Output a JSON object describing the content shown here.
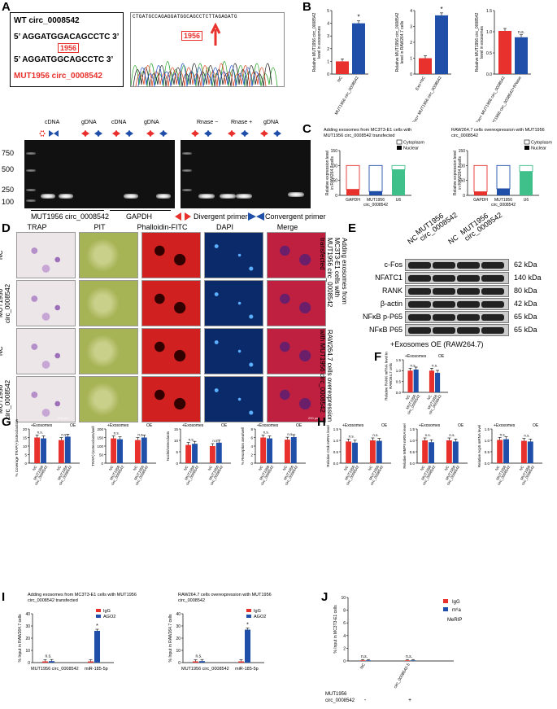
{
  "panels": {
    "A": "A",
    "B": "B",
    "C": "C",
    "D": "D",
    "E": "E",
    "F": "F",
    "G": "G",
    "H": "H",
    "I": "I",
    "J": "J"
  },
  "panelA": {
    "wt_title": "WT circ_0008542",
    "seq_wt": "5’ AGGATGGACAGCCTC 3’",
    "pos": "1956",
    "seq_mut": "5’ AGGATGGCAGCCTC 3’",
    "mut_title": "MUT1956 circ_0008542",
    "chrom_seq": "CTGATGCCAGAGGATGGCAGCCTCTTAGAGATG",
    "chrom_pos": "1956",
    "gel_left_headers": [
      "cDNA",
      "gDNA",
      "cDNA",
      "gDNA"
    ],
    "gel_right_headers": [
      "Rnase −",
      "Rnase +",
      "gDNA"
    ],
    "ladder": [
      "750",
      "500",
      "250",
      "100"
    ],
    "gel_bottom": [
      "MUT1956 circ_0008542",
      "GAPDH"
    ],
    "divergent": "Divergent primer",
    "convergent": "Convergent primer"
  },
  "panelB": {
    "charts": [
      {
        "ylabel": "Relative MUT1956 circ_0008542 level in exosomes",
        "ylim": [
          0,
          5
        ],
        "yticks": [
          "0",
          "1",
          "2",
          "3",
          "4",
          "5"
        ],
        "categories": [
          "NC",
          "MUT1956 circ_0008542"
        ],
        "values": [
          1,
          4
        ],
        "colors": [
          "#e8312d",
          "#1f4fa8"
        ],
        "sig": "*"
      },
      {
        "ylabel": "Relative MUT1956 circ_0008542 level in RAW264.7 cells",
        "ylim": [
          0,
          4
        ],
        "yticks": [
          "0",
          "1",
          "2",
          "3",
          "4"
        ],
        "categories": [
          "Exo+NC",
          "Exo+ MUT1956 circ_0008542"
        ],
        "values": [
          1,
          3.7
        ],
        "colors": [
          "#e8312d",
          "#1f4fa8"
        ],
        "sig": "*"
      },
      {
        "ylabel": "Relative MUT1956 circ_0008542 level in exosomes",
        "ylim": [
          0,
          1.5
        ],
        "yticks": [
          "0.0",
          "0.5",
          "1.0",
          "1.5"
        ],
        "categories": [
          "Exo+ MUT1956 circ_0008542",
          "Exo+ MUT1956 circ_0008542+RNase"
        ],
        "values": [
          1.02,
          0.87
        ],
        "colors": [
          "#e8312d",
          "#1f4fa8"
        ],
        "sig": "n.s."
      }
    ]
  },
  "panelC": {
    "charts": [
      {
        "title": "Adding exosomes from MC3T3-E1 cells with MUT1956 circ_0008542 transfected",
        "ylabel": "Relative expression level in RAW264.7 cells",
        "ylim": [
          0,
          150
        ],
        "yticks": [
          "0",
          "50",
          "100",
          "150"
        ],
        "categories": [
          "GAPDH",
          "MUT1956 circ_0008542",
          "U6"
        ],
        "cytoplasm": [
          80,
          87,
          14
        ],
        "nuclear": [
          20,
          13,
          86
        ],
        "legend": [
          "Cytoplasm",
          "Nuclear"
        ]
      },
      {
        "title": "RAW264.7 cells overexpression with MUT1956 circ_0008542",
        "ylabel": "Relative expression level in RAW264.7 cells",
        "ylim": [
          0,
          150
        ],
        "yticks": [
          "0",
          "50",
          "100",
          "150"
        ],
        "categories": [
          "GAPDH",
          "MUT1956 circ_0008542",
          "U6"
        ],
        "cytoplasm": [
          88,
          78,
          20
        ],
        "nuclear": [
          12,
          22,
          80
        ],
        "legend": [
          "Cytoplasm",
          "Nuclear"
        ]
      }
    ]
  },
  "panelD": {
    "cols": [
      "TRAP",
      "PIT",
      "Phalloidin-FITC",
      "DAPI",
      "Merge"
    ],
    "rows": [
      "NC",
      "MUT1956 circ_0008542",
      "NC",
      "MUT1956 circ_0008542"
    ],
    "side1": "Adding exosomes from MC3T3-E1 cells with MUT1956 circ_0008542 transfected",
    "side2": "RAW264.7 cells overexpression with MUT1956 circ_0008542",
    "scale": "200 μm"
  },
  "panelE": {
    "col_headers": [
      "NC",
      "MUT1956 circ_0008542",
      "NC",
      "MUT1956 circ_0008542"
    ],
    "proteins": [
      {
        "name": "c-Fos",
        "kda": "62 kDa"
      },
      {
        "name": "NFATC1",
        "kda": "140 kDa"
      },
      {
        "name": "RANK",
        "kda": "80 kDa"
      },
      {
        "name": "β-actin",
        "kda": "42 kDa"
      },
      {
        "name": "NFκB p-P65",
        "kda": "65 kDa"
      },
      {
        "name": "NFκB P65",
        "kda": "65 kDa"
      }
    ],
    "footer": "+Exosomes  OE (RAW264.7)"
  },
  "panelF": {
    "ylabel": "Relative RANK mRNA level in RAW264.7 cells",
    "group_labels": [
      "+Exosomes",
      "OE"
    ],
    "categories": [
      "NC",
      "MUT1956 circ_0008542",
      "NC",
      "MUT1956 circ_0008542"
    ],
    "values": [
      1.0,
      1.05,
      1.0,
      0.9
    ],
    "ylim": [
      0,
      1.5
    ],
    "yticks": [
      "0.0",
      "0.5",
      "1.0",
      "1.5"
    ],
    "sig": [
      "n.s.",
      "n.s."
    ]
  },
  "panelG": {
    "charts": [
      {
        "ylabel": "% Coverage TRAP(+)osteoclasts/well",
        "ylim": [
          0,
          20
        ],
        "yticks": [
          "0",
          "5",
          "10",
          "15",
          "20"
        ],
        "values": [
          15,
          14.5,
          13.5,
          15.5
        ]
      },
      {
        "ylabel": "TRAP(+)osteoclasts/well",
        "ylim": [
          0,
          200
        ],
        "yticks": [
          "0",
          "50",
          "100",
          "150",
          "200"
        ],
        "values": [
          145,
          140,
          135,
          150
        ]
      },
      {
        "ylabel": "Nuclei/osteoclasts",
        "ylim": [
          0,
          15
        ],
        "yticks": [
          "0",
          "5",
          "10",
          "15"
        ],
        "values": [
          8,
          8.5,
          7.5,
          9
        ]
      },
      {
        "ylabel": "% Resorption area/well",
        "ylim": [
          0,
          8
        ],
        "yticks": [
          "0",
          "2",
          "4",
          "6",
          "8"
        ],
        "values": [
          6,
          5.8,
          5.5,
          6.1
        ]
      }
    ],
    "group_labels": [
      "+Exosomes",
      "OE"
    ],
    "categories": [
      "NC",
      "MUT1956 circ_0008542",
      "NC",
      "MUT1956 circ_0008542"
    ],
    "sig": "n.s."
  },
  "panelH": {
    "charts": [
      {
        "ylabel": "Relative Ctsk mRNA level",
        "ylim": [
          0,
          1.5
        ],
        "yticks": [
          "0.0",
          "0.5",
          "1.0",
          "1.5"
        ],
        "values": [
          0.95,
          0.9,
          1.0,
          0.98
        ]
      },
      {
        "ylabel": "Relative MMP9 mRNA level",
        "ylim": [
          0,
          1.5
        ],
        "yticks": [
          "0.0",
          "0.5",
          "1.0",
          "1.5"
        ],
        "values": [
          1.0,
          0.92,
          1.0,
          0.95
        ]
      },
      {
        "ylabel": "Relative Acp5 mRNA level",
        "ylim": [
          0,
          1.5
        ],
        "yticks": [
          "0.0",
          "0.5",
          "1.0",
          "1.5"
        ],
        "values": [
          1.02,
          1.05,
          0.98,
          0.95
        ]
      }
    ],
    "group_labels": [
      "+Exosomes",
      "OE"
    ],
    "categories": [
      "NC",
      "MUT1956 circ_0008542",
      "NC",
      "MUT1956 circ_0008542"
    ],
    "sig": "n.s."
  },
  "panelI": {
    "charts": [
      {
        "title": "Adding exosomes from MC3T3-E1 cells with MUT1956 circ_0008542 transfected",
        "ylabel": "% Input in RAW264.7 cells",
        "ylim": [
          0,
          40
        ],
        "yticks": [
          "0",
          "10",
          "20",
          "30",
          "40"
        ],
        "categories": [
          "MUT1956 circ_0008542",
          "miR-185-5p"
        ],
        "igg": [
          1,
          1
        ],
        "ago2": [
          1.2,
          26
        ],
        "sig": [
          "n.s.",
          "*"
        ]
      },
      {
        "title": "RAW264.7 cells overexpression with MUT1956 circ_0008542",
        "ylabel": "% Input in RAW264.7 cells",
        "ylim": [
          0,
          40
        ],
        "yticks": [
          "0",
          "10",
          "20",
          "30",
          "40"
        ],
        "categories": [
          "MUT1956 circ_0008542",
          "miR-185-5p"
        ],
        "igg": [
          1,
          1
        ],
        "ago2": [
          1.2,
          27
        ],
        "sig": [
          "n.s.",
          "*"
        ]
      }
    ],
    "legend": [
      "IgG",
      "AGO2"
    ]
  },
  "panelJ": {
    "ylabel": "% Input in MC3T3-E1 cells",
    "ylim": [
      0,
      10
    ],
    "yticks": [
      "0",
      "2",
      "4",
      "6",
      "8",
      "10"
    ],
    "categories": [
      "NC",
      "circ_0008542-5"
    ],
    "igg": [
      0.1,
      0.1
    ],
    "m6a": [
      0.1,
      0.1
    ],
    "sig": [
      "n.s.",
      "n.s."
    ],
    "legend": [
      "IgG",
      "m⁶a"
    ],
    "meRIP": "MeRIP",
    "row_label": "MUT1956 circ_0008542",
    "row_values": [
      "-",
      "+"
    ]
  },
  "chart_data": [
    {
      "type": "bar",
      "categories": [
        "NC",
        "MUT1956 circ_0008542"
      ],
      "values": [
        1,
        4
      ],
      "ylim": [
        0,
        5
      ]
    },
    {
      "type": "bar",
      "categories": [
        "Exo+NC",
        "Exo+ MUT1956 circ_0008542"
      ],
      "values": [
        1,
        3.7
      ],
      "ylim": [
        0,
        4
      ]
    },
    {
      "type": "bar",
      "categories": [
        "Exo+ MUT1956 circ_0008542",
        "Exo+ MUT1956 circ_0008542+RNase"
      ],
      "values": [
        1.02,
        0.87
      ],
      "ylim": [
        0,
        1.5
      ]
    },
    {
      "type": "bar",
      "categories": [
        "NC",
        "MUT1956 circ_0008542",
        "NC",
        "MUT1956 circ_0008542"
      ],
      "values": [
        1.0,
        1.05,
        1.0,
        0.9
      ],
      "ylim": [
        0,
        1.5
      ]
    }
  ],
  "colors": {
    "red": "#e8312d",
    "blue": "#1f4fa8",
    "green": "#3fbf8a"
  }
}
